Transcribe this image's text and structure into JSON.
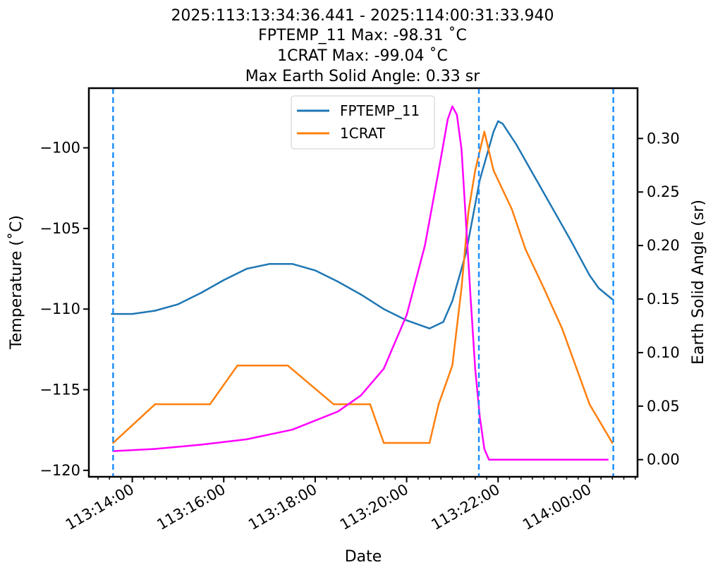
{
  "chart_data": {
    "type": "line",
    "title_lines": [
      "2025:113:13:34:36.441 - 2025:114:00:31:33.940",
      "FPTEMP_11 Max: -98.31 ˚C",
      "1CRAT Max: -99.04 ˚C",
      "Max Earth Solid Angle: 0.33 sr"
    ],
    "xlabel": "Date",
    "ylabel_left": "Temperature ($^\\circ$C)",
    "ylabel_left_display": "Temperature (˚C)",
    "ylabel_right": "Earth Solid Angle (sr)",
    "x_unit": "hours since 2025:113:14:00",
    "x_range": [
      -0.95,
      11.05
    ],
    "x_ticks": [
      {
        "value": 0,
        "label": "113:14:00"
      },
      {
        "value": 2,
        "label": "113:16:00"
      },
      {
        "value": 4,
        "label": "113:18:00"
      },
      {
        "value": 6,
        "label": "113:20:00"
      },
      {
        "value": 8,
        "label": "113:22:00"
      },
      {
        "value": 10,
        "label": "114:00:00"
      }
    ],
    "y_left_range": [
      -120.4,
      -96.3
    ],
    "y_left_ticks": [
      {
        "value": -100,
        "label": "−100"
      },
      {
        "value": -105,
        "label": "−105"
      },
      {
        "value": -110,
        "label": "−110"
      },
      {
        "value": -115,
        "label": "−115"
      },
      {
        "value": -120,
        "label": "−120"
      }
    ],
    "y_right_range": [
      -0.016,
      0.347
    ],
    "y_right_ticks": [
      {
        "value": 0.0,
        "label": "0.00"
      },
      {
        "value": 0.05,
        "label": "0.05"
      },
      {
        "value": 0.1,
        "label": "0.10"
      },
      {
        "value": 0.15,
        "label": "0.15"
      },
      {
        "value": 0.2,
        "label": "0.20"
      },
      {
        "value": 0.25,
        "label": "0.25"
      },
      {
        "value": 0.3,
        "label": "0.30"
      }
    ],
    "vlines": [
      -0.42,
      7.58,
      10.52
    ],
    "legend": {
      "position": "upper-center",
      "entries": [
        "FPTEMP_11",
        "1CRAT"
      ]
    },
    "series": [
      {
        "name": "FPTEMP_11",
        "axis": "left",
        "color": "#1f77b4",
        "x": [
          -0.45,
          0,
          0.5,
          1,
          1.5,
          2,
          2.5,
          3,
          3.5,
          4,
          4.5,
          5,
          5.5,
          6,
          6.5,
          6.8,
          7.0,
          7.3,
          7.6,
          7.9,
          8.0,
          8.1,
          8.4,
          8.8,
          9.2,
          9.6,
          10.0,
          10.2,
          10.5
        ],
        "y": [
          -110.3,
          -110.3,
          -110.1,
          -109.7,
          -109.0,
          -108.2,
          -107.5,
          -107.2,
          -107.2,
          -107.6,
          -108.3,
          -109.1,
          -110.0,
          -110.7,
          -111.2,
          -110.8,
          -109.5,
          -106.5,
          -102.0,
          -99.0,
          -98.35,
          -98.5,
          -99.8,
          -101.8,
          -103.8,
          -105.8,
          -107.9,
          -108.7,
          -109.4
        ]
      },
      {
        "name": "1CRAT",
        "axis": "left",
        "color": "#ff7f0e",
        "x": [
          -0.42,
          0.5,
          1.7,
          2.3,
          3.4,
          4.4,
          5.2,
          5.5,
          6.0,
          6.5,
          6.7,
          7.0,
          7.2,
          7.35,
          7.5,
          7.7,
          7.9,
          8.3,
          8.6,
          9.0,
          9.4,
          10.0,
          10.5
        ],
        "y": [
          -118.3,
          -115.9,
          -115.9,
          -113.5,
          -113.5,
          -115.9,
          -115.9,
          -118.3,
          -118.3,
          -118.3,
          -115.9,
          -113.5,
          -108.7,
          -104.0,
          -101.4,
          -99.0,
          -101.4,
          -103.8,
          -106.3,
          -108.7,
          -111.2,
          -115.9,
          -118.3
        ]
      },
      {
        "name": "",
        "axis": "right",
        "color": "#ff00ff",
        "x": [
          -0.42,
          0.5,
          1.5,
          2.5,
          3.5,
          4.5,
          5.0,
          5.5,
          6.0,
          6.4,
          6.7,
          6.9,
          7.0,
          7.1,
          7.2,
          7.3,
          7.4,
          7.5,
          7.6,
          7.7,
          7.8,
          8.5,
          9.5,
          10.4
        ],
        "y": [
          0.008,
          0.01,
          0.014,
          0.019,
          0.028,
          0.045,
          0.06,
          0.085,
          0.135,
          0.2,
          0.27,
          0.318,
          0.33,
          0.322,
          0.29,
          0.22,
          0.15,
          0.085,
          0.04,
          0.01,
          0.0,
          0.0,
          0.0,
          0.0
        ]
      }
    ],
    "vline_color": "#1e90ff",
    "colors": {
      "background": "#ffffff",
      "axes": "#000000"
    }
  }
}
